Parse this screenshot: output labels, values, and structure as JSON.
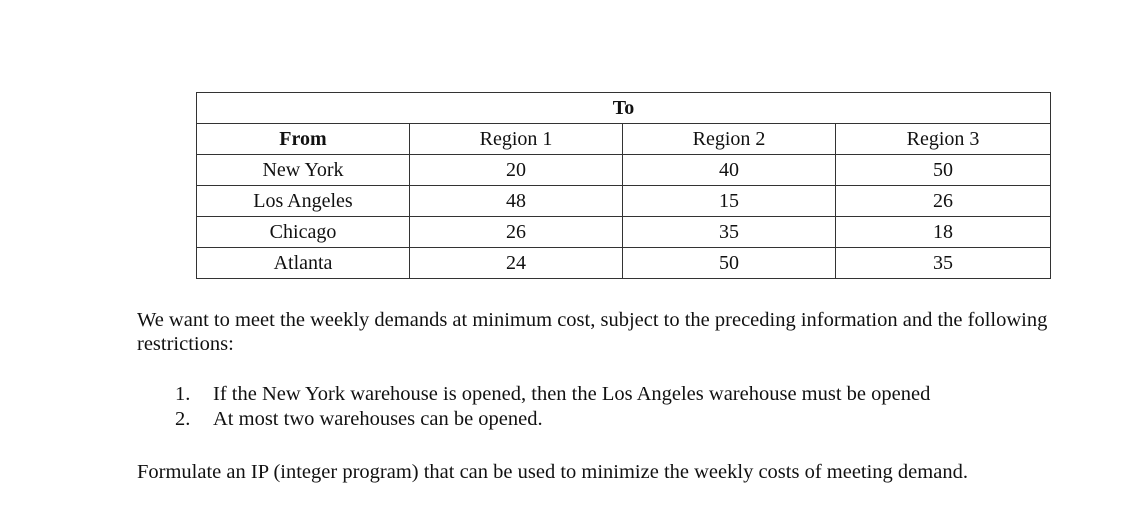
{
  "table": {
    "to_header": "To",
    "columns": [
      "From",
      "Region 1",
      "Region 2",
      "Region 3"
    ],
    "rows": [
      {
        "from": "New York",
        "values": [
          "20",
          "40",
          "50"
        ]
      },
      {
        "from": "Los Angeles",
        "values": [
          "48",
          "15",
          "26"
        ]
      },
      {
        "from": "Chicago",
        "values": [
          "26",
          "35",
          "18"
        ]
      },
      {
        "from": "Atlanta",
        "values": [
          "24",
          "50",
          "35"
        ]
      }
    ]
  },
  "intro_paragraph": "We want to meet the weekly demands at minimum cost, subject to the preceding information and the following restrictions:",
  "restrictions": [
    {
      "num": "1.",
      "text": "If the New York warehouse is opened, then the Los Angeles warehouse must be opened"
    },
    {
      "num": "2.",
      "text": "At most two warehouses can be opened."
    }
  ],
  "closing_paragraph": "Formulate an IP (integer program) that can be used to minimize the weekly costs of meeting demand."
}
